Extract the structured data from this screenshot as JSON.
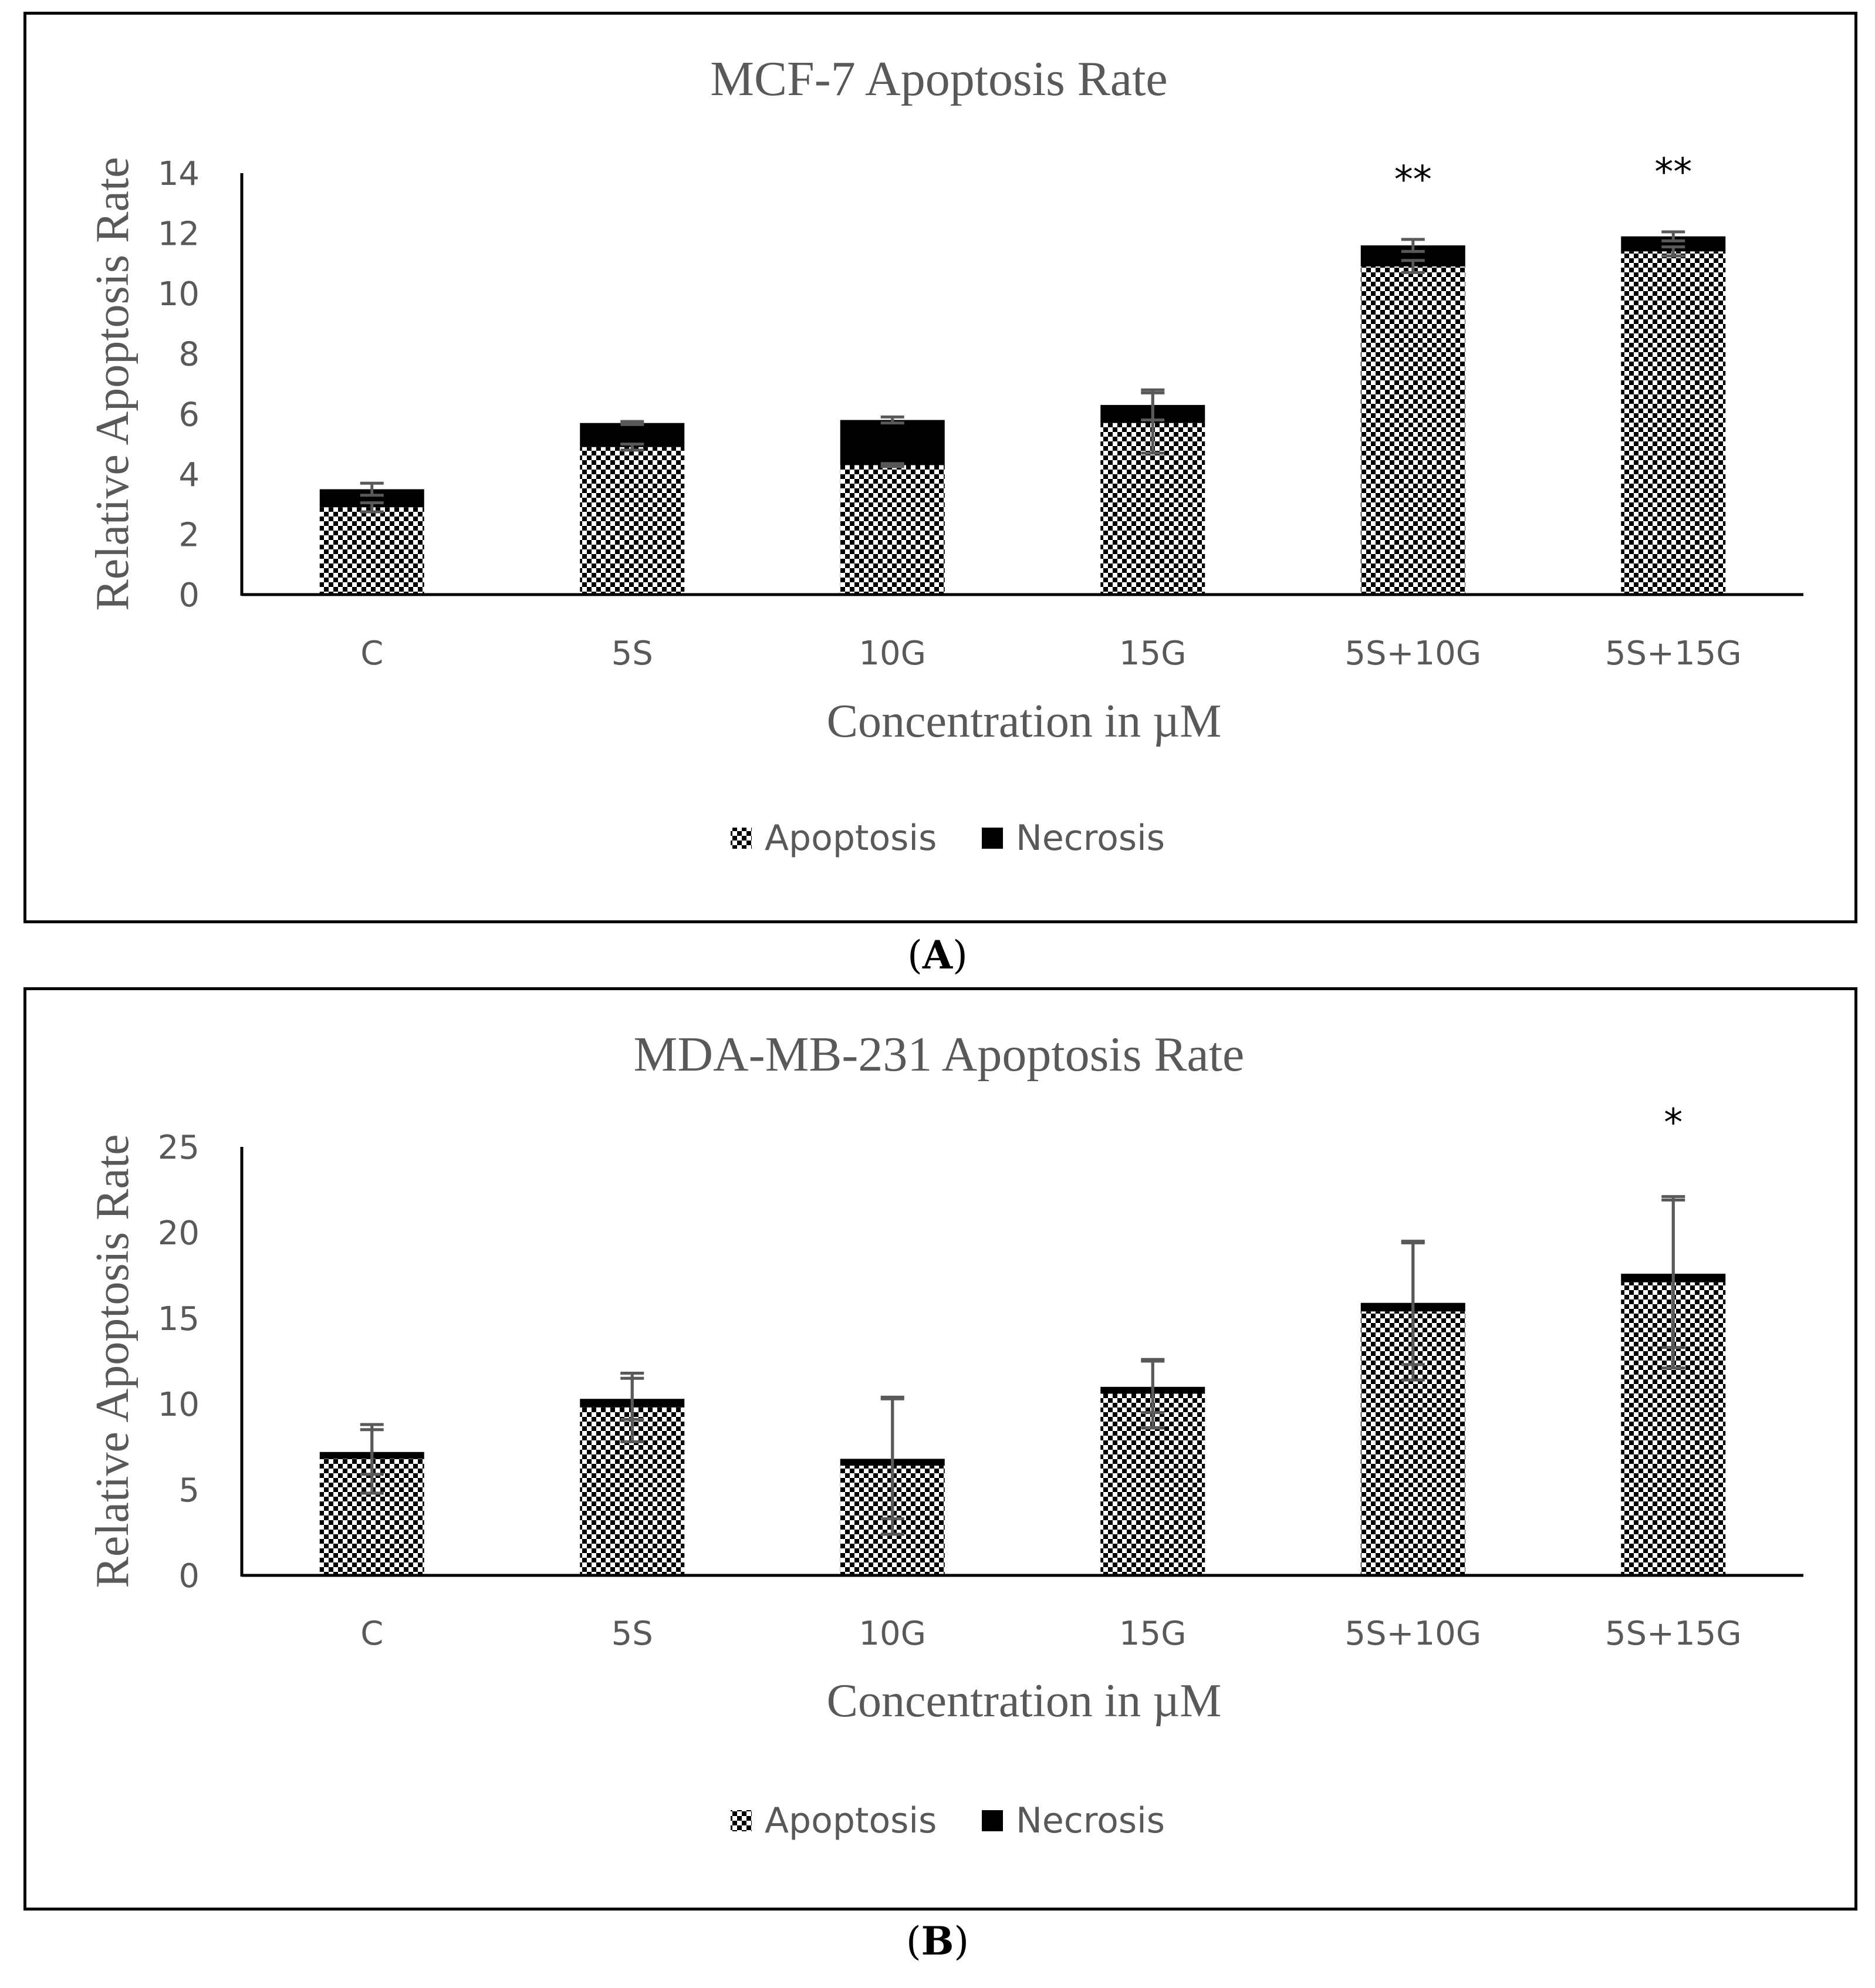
{
  "chart_data": [
    {
      "type": "bar",
      "stacked": true,
      "panel": "A",
      "title": "MCF-7 Apoptosis Rate",
      "xlabel": "Concentration in µM",
      "ylabel": "Relative Apoptosis Rate",
      "categories": [
        "C",
        "5S",
        "10G",
        "15G",
        "5S+10G",
        "5S+15G"
      ],
      "ylim": [
        0,
        14
      ],
      "yticks": [
        0,
        2,
        4,
        6,
        8,
        10,
        12,
        14
      ],
      "series": [
        {
          "name": "Apoptosis",
          "pattern": "checker",
          "values": [
            2.9,
            4.9,
            4.3,
            5.7,
            10.9,
            11.4
          ],
          "errors": [
            0.15,
            0.1,
            0.05,
            1.0,
            0.2,
            0.15
          ]
        },
        {
          "name": "Necrosis",
          "color": "#000000",
          "values": [
            0.6,
            0.8,
            1.5,
            0.6,
            0.7,
            0.5
          ],
          "errors": [
            0.2,
            0.05,
            0.1,
            0.5,
            0.2,
            0.15
          ]
        }
      ],
      "annotations": [
        {
          "category": "5S+10G",
          "text": "**"
        },
        {
          "category": "5S+15G",
          "text": "**"
        }
      ],
      "legend": "bottom-center",
      "panel_label": "A"
    },
    {
      "type": "bar",
      "stacked": true,
      "panel": "B",
      "title": "MDA-MB-231 Apoptosis Rate",
      "xlabel": "Concentration in µM",
      "ylabel": "Relative Apoptosis Rate",
      "categories": [
        "C",
        "5S",
        "10G",
        "15G",
        "5S+10G",
        "5S+15G"
      ],
      "ylim": [
        0,
        25
      ],
      "yticks": [
        0,
        5,
        10,
        15,
        20,
        25
      ],
      "series": [
        {
          "name": "Apoptosis",
          "pattern": "checker",
          "values": [
            6.8,
            9.8,
            6.4,
            10.6,
            15.4,
            17.1
          ],
          "errors": [
            2.0,
            2.0,
            4.0,
            2.0,
            4.0,
            5.0
          ]
        },
        {
          "name": "Necrosis",
          "color": "#000000",
          "values": [
            0.4,
            0.5,
            0.4,
            0.4,
            0.5,
            0.5
          ],
          "errors": [
            1.3,
            1.2,
            3.5,
            1.5,
            3.6,
            4.3
          ]
        }
      ],
      "annotations": [
        {
          "category": "5S+15G",
          "text": "*"
        }
      ],
      "legend": "bottom-center",
      "panel_label": "B"
    }
  ]
}
